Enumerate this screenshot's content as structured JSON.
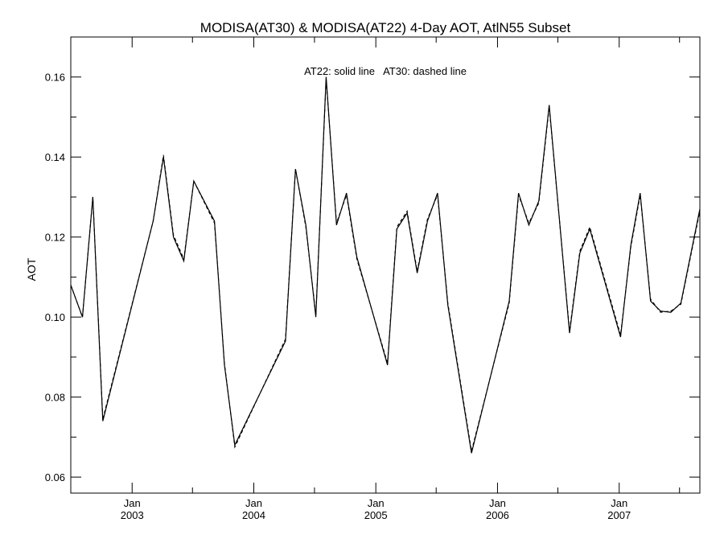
{
  "chart_data": {
    "type": "line",
    "title": "MODISA(AT30) & MODISA(AT22) 4-Day AOT, AtlN55 Subset",
    "ylabel": "AOT",
    "xlabel": "",
    "annotation": "AT22: solid line   AT30: dashed line",
    "ylim": [
      0.056,
      0.17
    ],
    "xlim": [
      "2002-07-01",
      "2007-08-31"
    ],
    "grid": false,
    "y_ticks": [
      {
        "value": 0.06,
        "label": "0.06"
      },
      {
        "value": 0.08,
        "label": "0.08"
      },
      {
        "value": 0.1,
        "label": "0.10"
      },
      {
        "value": 0.12,
        "label": "0.12"
      },
      {
        "value": 0.14,
        "label": "0.14"
      },
      {
        "value": 0.16,
        "label": "0.16"
      }
    ],
    "x_ticks": [
      {
        "date": "2003-01-01",
        "month": "Jan",
        "year": "2003"
      },
      {
        "date": "2004-01-01",
        "month": "Jan",
        "year": "2004"
      },
      {
        "date": "2005-01-01",
        "month": "Jan",
        "year": "2005"
      },
      {
        "date": "2006-01-01",
        "month": "Jan",
        "year": "2006"
      },
      {
        "date": "2007-01-01",
        "month": "Jan",
        "year": "2007"
      }
    ],
    "series": [
      {
        "name": "AT22",
        "style": "solid",
        "points": [
          [
            "2002-07-01",
            0.108
          ],
          [
            "2002-08-05",
            0.1
          ],
          [
            "2002-09-05",
            0.13
          ],
          [
            "2002-10-05",
            0.074
          ],
          [
            "2003-03-05",
            0.124
          ],
          [
            "2003-04-05",
            0.14
          ],
          [
            "2003-05-05",
            0.12
          ],
          [
            "2003-06-05",
            0.114
          ],
          [
            "2003-07-05",
            0.134
          ],
          [
            "2003-09-05",
            0.124
          ],
          [
            "2003-10-05",
            0.088
          ],
          [
            "2003-11-05",
            0.068
          ],
          [
            "2004-04-05",
            0.094
          ],
          [
            "2004-05-05",
            0.137
          ],
          [
            "2004-06-05",
            0.123
          ],
          [
            "2004-07-05",
            0.1
          ],
          [
            "2004-08-05",
            0.16
          ],
          [
            "2004-09-05",
            0.123
          ],
          [
            "2004-10-05",
            0.131
          ],
          [
            "2004-11-05",
            0.115
          ],
          [
            "2005-02-05",
            0.088
          ],
          [
            "2005-03-05",
            0.122
          ],
          [
            "2005-04-05",
            0.126
          ],
          [
            "2005-05-05",
            0.111
          ],
          [
            "2005-06-05",
            0.124
          ],
          [
            "2005-07-05",
            0.131
          ],
          [
            "2005-08-05",
            0.103
          ],
          [
            "2005-10-15",
            0.066
          ],
          [
            "2006-02-05",
            0.104
          ],
          [
            "2006-03-05",
            0.131
          ],
          [
            "2006-04-05",
            0.123
          ],
          [
            "2006-05-05",
            0.129
          ],
          [
            "2006-06-05",
            0.153
          ],
          [
            "2006-08-05",
            0.096
          ],
          [
            "2006-09-05",
            0.116
          ],
          [
            "2006-10-05",
            0.122
          ],
          [
            "2007-01-05",
            0.095
          ],
          [
            "2007-02-05",
            0.118
          ],
          [
            "2007-03-05",
            0.131
          ],
          [
            "2007-04-05",
            0.104
          ],
          [
            "2007-05-05",
            0.1015
          ],
          [
            "2007-06-05",
            0.1012
          ],
          [
            "2007-07-05",
            0.1035
          ],
          [
            "2007-08-31",
            0.127
          ]
        ]
      },
      {
        "name": "AT30",
        "style": "dashed",
        "points": [
          [
            "2002-07-01",
            0.108
          ],
          [
            "2002-08-05",
            0.1
          ],
          [
            "2002-09-05",
            0.13
          ],
          [
            "2002-10-05",
            0.0745
          ],
          [
            "2003-03-05",
            0.124
          ],
          [
            "2003-04-05",
            0.1405
          ],
          [
            "2003-05-05",
            0.1205
          ],
          [
            "2003-06-05",
            0.1145
          ],
          [
            "2003-07-05",
            0.134
          ],
          [
            "2003-09-05",
            0.1235
          ],
          [
            "2003-10-05",
            0.0885
          ],
          [
            "2003-11-05",
            0.0675
          ],
          [
            "2004-04-05",
            0.0945
          ],
          [
            "2004-05-05",
            0.137
          ],
          [
            "2004-06-05",
            0.1225
          ],
          [
            "2004-07-05",
            0.1005
          ],
          [
            "2004-08-05",
            0.1595
          ],
          [
            "2004-09-05",
            0.1235
          ],
          [
            "2004-10-05",
            0.1305
          ],
          [
            "2004-11-05",
            0.1145
          ],
          [
            "2005-02-05",
            0.0885
          ],
          [
            "2005-03-05",
            0.1225
          ],
          [
            "2005-04-05",
            0.1265
          ],
          [
            "2005-05-05",
            0.1115
          ],
          [
            "2005-06-05",
            0.1245
          ],
          [
            "2005-07-05",
            0.1305
          ],
          [
            "2005-08-05",
            0.1035
          ],
          [
            "2005-10-15",
            0.0665
          ],
          [
            "2006-02-05",
            0.1035
          ],
          [
            "2006-03-05",
            0.1305
          ],
          [
            "2006-04-05",
            0.1235
          ],
          [
            "2006-05-05",
            0.1285
          ],
          [
            "2006-06-05",
            0.1525
          ],
          [
            "2006-08-05",
            0.0965
          ],
          [
            "2006-09-05",
            0.1165
          ],
          [
            "2006-10-05",
            0.1225
          ],
          [
            "2007-01-05",
            0.0955
          ],
          [
            "2007-02-05",
            0.1175
          ],
          [
            "2007-03-05",
            0.1305
          ],
          [
            "2007-04-05",
            0.1045
          ],
          [
            "2007-05-05",
            0.1012
          ],
          [
            "2007-06-05",
            0.1015
          ],
          [
            "2007-07-05",
            0.1032
          ],
          [
            "2007-08-31",
            0.1265
          ]
        ]
      }
    ]
  }
}
